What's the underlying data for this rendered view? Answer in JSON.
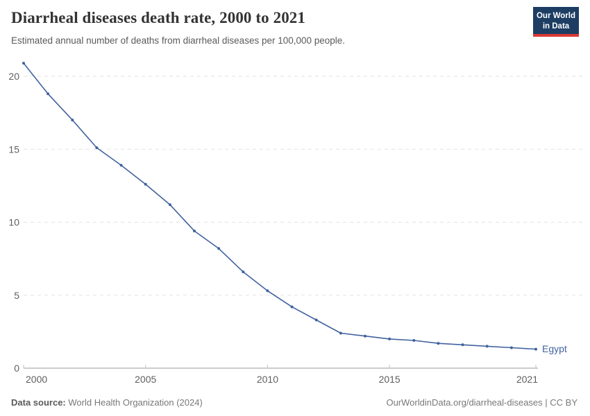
{
  "header": {
    "title": "Diarrheal diseases death rate, 2000 to 2021",
    "subtitle": "Estimated annual number of deaths from diarrheal diseases per 100,000 people.",
    "logo": {
      "line1": "Our World",
      "line2": "in Data",
      "bg_color": "#1d3d63",
      "accent_color": "#d93a34"
    }
  },
  "chart_data": {
    "type": "line",
    "title": "Diarrheal diseases death rate, 2000 to 2021",
    "subtitle": "Estimated annual number of deaths from diarrheal diseases per 100,000 people.",
    "xlabel": "",
    "ylabel": "",
    "x": [
      2000,
      2001,
      2002,
      2003,
      2004,
      2005,
      2006,
      2007,
      2008,
      2009,
      2010,
      2011,
      2012,
      2013,
      2014,
      2015,
      2016,
      2017,
      2018,
      2019,
      2020,
      2021
    ],
    "series": [
      {
        "name": "Egypt",
        "color": "#41629e",
        "values": [
          20.9,
          18.8,
          17.0,
          15.1,
          13.9,
          12.6,
          11.2,
          9.4,
          8.2,
          6.6,
          5.3,
          4.2,
          3.3,
          2.4,
          2.2,
          2.0,
          1.9,
          1.7,
          1.6,
          1.5,
          1.4,
          1.3
        ]
      }
    ],
    "end_label": "Egypt",
    "xlim": [
      2000,
      2021
    ],
    "ylim": [
      0,
      21
    ],
    "xticks": [
      2000,
      2005,
      2010,
      2015,
      2021
    ],
    "yticks": [
      0,
      5,
      10,
      15,
      20
    ],
    "grid": "horizontal dashed",
    "legend_position": "end-of-line"
  },
  "colors": {
    "line": "#41629e",
    "gridline": "#e2e2e2",
    "axis_line": "#999999",
    "axis_tick": "#c2c2c2",
    "tick_label": "#5f5f5f"
  },
  "footer": {
    "source_label": "Data source:",
    "source_value": "World Health Organization (2024)",
    "license": "OurWorldinData.org/diarrheal-diseases | CC BY"
  }
}
